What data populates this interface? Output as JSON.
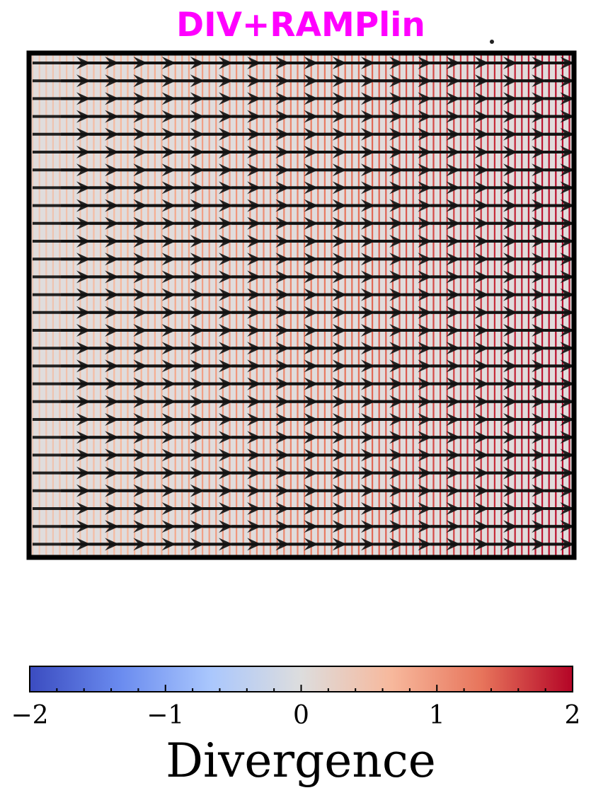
{
  "chart_data": {
    "type": "quiver",
    "title": "DIV+RAMPlin",
    "title_color": "#ff00ff",
    "background": {
      "type": "stripes",
      "orientation": "vertical",
      "divergence_range": [
        0.4,
        2.0
      ],
      "description_of_field": "divergence ramps linearly from left to right"
    },
    "arrows": {
      "columns": 19,
      "rows": 28,
      "direction": "right",
      "color": "#111111"
    },
    "colorbar": {
      "label": "Divergence",
      "vmin": -2,
      "vmax": 2,
      "ticks": [
        -2,
        -1,
        0,
        1,
        2
      ],
      "tick_labels": [
        "−2",
        "−1",
        "0",
        "1",
        "2"
      ],
      "colormap": "coolwarm",
      "colormap_stops": [
        "#3b4cc0",
        "#6a8bef",
        "#aac7fd",
        "#dddddd",
        "#f7b89c",
        "#e7745b",
        "#b40426"
      ]
    }
  }
}
